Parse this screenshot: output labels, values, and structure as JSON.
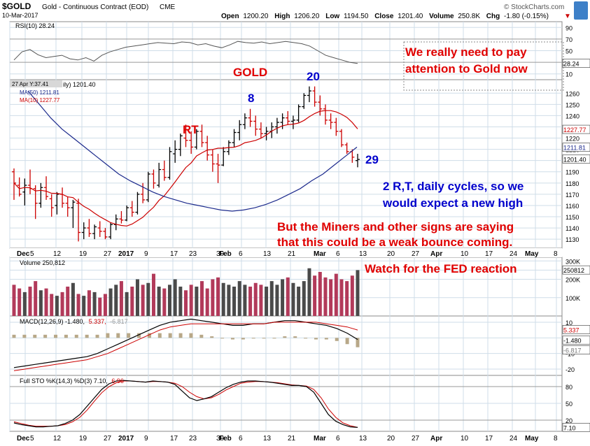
{
  "header": {
    "symbol": "$GOLD",
    "name": "Gold - Continuous Contract (EOD)",
    "exchange": "CME",
    "date": "10-Mar-2017",
    "open_label": "Open",
    "open": "1200.20",
    "high_label": "High",
    "high": "1206.20",
    "low_label": "Low",
    "low": "1194.50",
    "close_label": "Close",
    "close": "1201.40",
    "volume_label": "Volume",
    "volume": "250.8K",
    "chg_label": "Chg",
    "chg": "-1.80 (-0.15%)",
    "chg_arrow": "▼",
    "brand": "© StockCharts.com"
  },
  "rsi_panel": {
    "title": "RSI(10) 28.24",
    "value_badge": "28.24",
    "scale_labels": [
      "90",
      "70",
      "50",
      "30",
      "10"
    ]
  },
  "price_panel": {
    "legend_main": "ily) 1201.40",
    "hover_date": "27 Apr Y:37.41",
    "ma50_label": "MA(50) 1211.81",
    "ma10_label": "MA(10) 1227.77",
    "ma10_badge": "1227.77",
    "ma50_badge": "1211.81",
    "close_badge": "1201.40",
    "scale_labels": [
      "1260",
      "1250",
      "1240",
      "1230",
      "1220",
      "1210",
      "1200",
      "1190",
      "1180",
      "1170",
      "1160",
      "1150",
      "1140",
      "1130"
    ]
  },
  "volume_panel": {
    "title": "Volume 250,812",
    "badge": "250812",
    "scale_labels": [
      "300K",
      "250K",
      "200K",
      "100K"
    ]
  },
  "macd_panel": {
    "title": "MACD(12,26,9) -1.480,",
    "signal_text": "5.337,",
    "hist_text": "-6.817",
    "badges": [
      "5.337",
      "-1.480",
      "-6.817"
    ],
    "scale_labels": [
      "10",
      "0",
      "-10",
      "-20"
    ]
  },
  "sto_panel": {
    "title": "Full STO %K(14,3) %D(3) 7.10,",
    "d_text": "6.96",
    "badge": "7.10",
    "scale_labels": [
      "80",
      "50",
      "20"
    ]
  },
  "x_axis": {
    "top_labels": [
      "Dec",
      "5",
      "12",
      "19",
      "27",
      "2017",
      "9",
      "17",
      "23",
      "30",
      "Feb",
      "6",
      "13",
      "21",
      "Mar",
      "6",
      "13",
      "20",
      "27",
      "Apr",
      "10",
      "17",
      "24",
      "May",
      "8"
    ],
    "bottom_labels": [
      "Dec",
      "5",
      "12",
      "19",
      "27",
      "2017",
      "9",
      "17",
      "23",
      "30",
      "Feb",
      "6",
      "13",
      "21",
      "Mar",
      "6",
      "13",
      "20",
      "27",
      "Apr",
      "10",
      "17",
      "24",
      "May",
      "8"
    ]
  },
  "annotations": {
    "note_box_line1": "We really need to pay",
    "note_box_line2": "attention to Gold now",
    "gold": "GOLD",
    "rt": "RT",
    "n8": "8",
    "n20": "20",
    "n29": "29",
    "cycles_line1": "2 R,T, daily cycles, so we",
    "cycles_line2": "would expect a new high",
    "miners_line1": "But the Miners and other signs are saying",
    "miners_line2": "that this could be a weak bounce coming.",
    "fed": "Watch for the FED reaction"
  },
  "colors": {
    "up": "#000000",
    "down": "#cc0000",
    "ma50": "#1c2a8c",
    "ma10": "#cc0000",
    "vol_up": "#4a4a4a",
    "vol_down": "#b23a5a",
    "macd_hist": "#b8a888",
    "grid": "#cfdde8",
    "annot_red": "#e00000",
    "annot_blue": "#0000cc"
  },
  "chart_data": {
    "type": "candlestick",
    "title": "$GOLD Gold - Continuous Contract (EOD) CME",
    "ylim": [
      1122,
      1272
    ],
    "ohlc": [
      [
        1190,
        1193,
        1165,
        1180
      ],
      [
        1178,
        1185,
        1168,
        1170
      ],
      [
        1172,
        1184,
        1160,
        1178
      ],
      [
        1178,
        1192,
        1170,
        1175
      ],
      [
        1175,
        1178,
        1148,
        1162
      ],
      [
        1162,
        1180,
        1158,
        1176
      ],
      [
        1176,
        1186,
        1165,
        1168
      ],
      [
        1166,
        1170,
        1150,
        1158
      ],
      [
        1160,
        1172,
        1152,
        1170
      ],
      [
        1170,
        1176,
        1158,
        1162
      ],
      [
        1162,
        1168,
        1150,
        1158
      ],
      [
        1158,
        1165,
        1140,
        1163
      ],
      [
        1162,
        1166,
        1128,
        1136
      ],
      [
        1136,
        1145,
        1130,
        1140
      ],
      [
        1140,
        1148,
        1132,
        1135
      ],
      [
        1135,
        1143,
        1130,
        1141
      ],
      [
        1140,
        1146,
        1132,
        1137
      ],
      [
        1137,
        1140,
        1130,
        1132
      ],
      [
        1132,
        1145,
        1130,
        1143
      ],
      [
        1143,
        1152,
        1138,
        1148
      ],
      [
        1148,
        1155,
        1144,
        1147
      ],
      [
        1147,
        1160,
        1146,
        1158
      ],
      [
        1158,
        1164,
        1150,
        1154
      ],
      [
        1154,
        1172,
        1152,
        1170
      ],
      [
        1170,
        1180,
        1162,
        1165
      ],
      [
        1165,
        1190,
        1163,
        1188
      ],
      [
        1188,
        1192,
        1175,
        1180
      ],
      [
        1178,
        1198,
        1176,
        1192
      ],
      [
        1192,
        1200,
        1182,
        1185
      ],
      [
        1185,
        1212,
        1183,
        1208
      ],
      [
        1206,
        1218,
        1198,
        1210
      ],
      [
        1210,
        1224,
        1204,
        1222
      ],
      [
        1220,
        1232,
        1212,
        1218
      ],
      [
        1218,
        1226,
        1206,
        1212
      ],
      [
        1212,
        1228,
        1210,
        1226
      ],
      [
        1226,
        1232,
        1212,
        1216
      ],
      [
        1216,
        1222,
        1200,
        1205
      ],
      [
        1205,
        1210,
        1190,
        1197
      ],
      [
        1197,
        1206,
        1180,
        1196
      ],
      [
        1196,
        1212,
        1195,
        1208
      ],
      [
        1208,
        1218,
        1205,
        1216
      ],
      [
        1216,
        1228,
        1212,
        1225
      ],
      [
        1225,
        1236,
        1218,
        1232
      ],
      [
        1232,
        1242,
        1228,
        1238
      ],
      [
        1238,
        1246,
        1230,
        1235
      ],
      [
        1235,
        1240,
        1222,
        1228
      ],
      [
        1228,
        1234,
        1220,
        1224
      ],
      [
        1224,
        1230,
        1218,
        1226
      ],
      [
        1226,
        1234,
        1220,
        1230
      ],
      [
        1230,
        1238,
        1224,
        1234
      ],
      [
        1234,
        1242,
        1228,
        1238
      ],
      [
        1238,
        1244,
        1232,
        1235
      ],
      [
        1235,
        1240,
        1228,
        1236
      ],
      [
        1236,
        1250,
        1234,
        1248
      ],
      [
        1248,
        1260,
        1246,
        1258
      ],
      [
        1258,
        1266,
        1252,
        1262
      ],
      [
        1262,
        1266,
        1248,
        1252
      ],
      [
        1252,
        1258,
        1240,
        1246
      ],
      [
        1246,
        1250,
        1232,
        1236
      ],
      [
        1236,
        1242,
        1228,
        1234
      ],
      [
        1234,
        1238,
        1222,
        1226
      ],
      [
        1226,
        1228,
        1212,
        1214
      ],
      [
        1214,
        1216,
        1206,
        1208
      ],
      [
        1208,
        1210,
        1198,
        1203
      ],
      [
        1200,
        1206,
        1194,
        1201
      ]
    ],
    "rsi": [
      34,
      48,
      52,
      43,
      38,
      40,
      42,
      36,
      34,
      38,
      32,
      42,
      48,
      52,
      56,
      58,
      60,
      62,
      64,
      63,
      62,
      65,
      64,
      60,
      62,
      58,
      55,
      60,
      66,
      64,
      63,
      65,
      62,
      64,
      66,
      64,
      62,
      58,
      50,
      42,
      38,
      34,
      30,
      28
    ],
    "volume": [
      170,
      150,
      130,
      160,
      190,
      140,
      150,
      120,
      110,
      130,
      160,
      180,
      120,
      110,
      140,
      130,
      100,
      120,
      150,
      170,
      190,
      130,
      160,
      200,
      170,
      180,
      230,
      160,
      150,
      170,
      200,
      160,
      140,
      170,
      160,
      190,
      150,
      200,
      210,
      180,
      170,
      160,
      190,
      170,
      160,
      180,
      170,
      160,
      190,
      170,
      200,
      210,
      180,
      160,
      190,
      260,
      220,
      240,
      210,
      200,
      230,
      200,
      190,
      220,
      250
    ],
    "macd": [
      -19,
      -18,
      -17,
      -16,
      -15,
      -14,
      -13,
      -12,
      -10,
      -7,
      -4,
      -1,
      2,
      5,
      8,
      10,
      11,
      12,
      11,
      10,
      9,
      8,
      8,
      9,
      9,
      10,
      11,
      11,
      10,
      9,
      8,
      6,
      3,
      -1
    ],
    "macd_signal": [
      -21,
      -20,
      -19,
      -18,
      -17,
      -16,
      -15,
      -14,
      -12,
      -10,
      -7,
      -4,
      -1,
      2,
      5,
      7,
      8,
      9,
      9,
      9,
      9,
      9,
      9,
      9,
      9,
      10,
      10,
      10,
      10,
      10,
      9,
      8,
      7,
      5
    ],
    "sto_k": [
      15,
      12,
      10,
      8,
      8,
      9,
      10,
      14,
      20,
      30,
      45,
      60,
      75,
      85,
      90,
      91,
      90,
      89,
      88,
      90,
      89,
      88,
      84,
      72,
      60,
      55,
      58,
      62,
      70,
      78,
      84,
      88,
      90,
      90,
      89,
      88,
      86,
      84,
      82,
      82,
      80,
      70,
      50,
      30,
      18,
      12,
      8,
      7
    ],
    "sto_d": [
      17,
      14,
      11,
      9,
      9,
      9,
      10,
      12,
      17,
      25,
      38,
      54,
      69,
      80,
      87,
      90,
      90,
      89,
      88,
      89,
      89,
      88,
      86,
      80,
      70,
      62,
      58,
      60,
      66,
      74,
      80,
      86,
      88,
      89,
      89,
      88,
      87,
      85,
      83,
      82,
      81,
      75,
      60,
      40,
      25,
      15,
      10,
      7
    ]
  }
}
